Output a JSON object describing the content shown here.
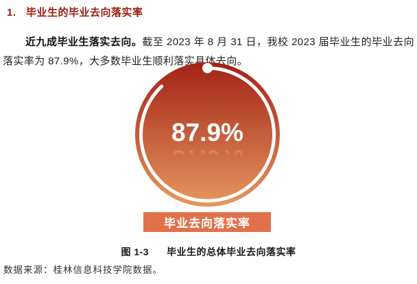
{
  "page": {
    "background": "#FFFFFF"
  },
  "heading": {
    "number": "1.",
    "title": "毕业生的毕业去向落实率",
    "color": "#9A1B0F"
  },
  "paragraph": {
    "lead_bold": "近九成毕业生落实去向。",
    "rest": "截至 2023 年 8 月 31 日，我校 2023 届毕业生的毕业去向落实率为 87.9%，大多数毕业生顺利落实具体去向。"
  },
  "chart_data": {
    "type": "pie",
    "title": "毕业去向落实率",
    "value": 87.9,
    "unit": "%",
    "center_label": "87.9%",
    "series": [
      {
        "name": "毕业去向落实率",
        "values": [
          87.9
        ]
      }
    ],
    "ring": {
      "start_angle_deg": -90,
      "direction": "clockwise",
      "start_marker": "dot"
    },
    "colors": {
      "gradient_top": "#A32217",
      "gradient_bottom": "#E6985F",
      "ring": "#FFFFFF",
      "banner": "#E1714B",
      "center_text": "#FFFFFF"
    },
    "banner_label": "毕业去向落实率"
  },
  "figure_caption": {
    "number": "图 1-3",
    "title": "毕业生的总体毕业去向落实率"
  },
  "source_note": "数据来源：桂林信息科技学院数据。"
}
